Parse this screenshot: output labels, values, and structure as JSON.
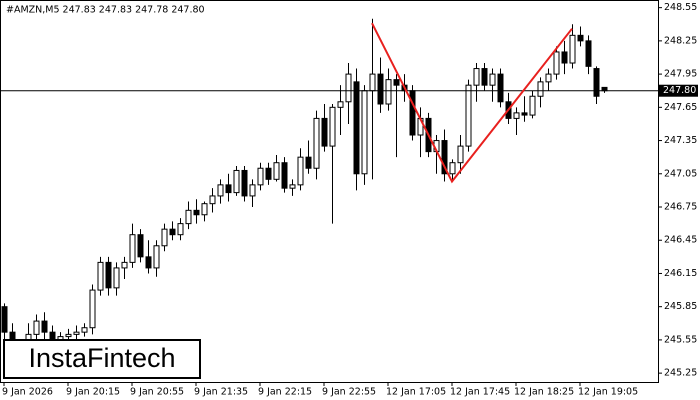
{
  "chart_data": {
    "type": "candlestick",
    "header": "#AMZN,M5  247.83 247.83 247.78 247.80",
    "watermark": "InstaFintech",
    "categories": [
      "9 Jan 2026",
      null,
      null,
      null,
      null,
      null,
      null,
      null,
      "9 Jan 20:15",
      null,
      null,
      null,
      null,
      null,
      null,
      null,
      "9 Jan 20:55",
      null,
      null,
      null,
      null,
      null,
      null,
      null,
      "9 Jan 21:35",
      null,
      null,
      null,
      null,
      null,
      null,
      null,
      "9 Jan 22:15",
      null,
      null,
      null,
      null,
      null,
      null,
      null,
      "9 Jan 22:55",
      null,
      null,
      null,
      null,
      null,
      null,
      null,
      "12 Jan 17:05",
      null,
      null,
      null,
      null,
      null,
      null,
      null,
      "12 Jan 17:45",
      null,
      null,
      null,
      null,
      null,
      null,
      null,
      "12 Jan 18:25",
      null,
      null,
      null,
      null,
      null,
      null,
      null,
      "12 Jan 19:05",
      null,
      null,
      null
    ],
    "open": [
      245.85,
      245.62,
      245.48,
      245.5,
      245.6,
      245.72,
      245.62,
      245.5,
      245.58,
      245.6,
      245.62,
      245.66,
      246.0,
      246.25,
      246.02,
      246.2,
      246.25,
      246.5,
      246.3,
      246.2,
      246.4,
      246.55,
      246.5,
      246.6,
      246.72,
      246.68,
      246.78,
      246.85,
      246.95,
      246.88,
      247.08,
      246.85,
      246.95,
      247.1,
      247.0,
      247.15,
      246.92,
      246.95,
      247.2,
      247.1,
      247.55,
      247.3,
      247.65,
      247.7,
      247.88,
      247.05,
      247.8,
      247.95,
      247.68,
      247.9,
      247.85,
      247.8,
      247.4,
      247.55,
      247.25,
      247.35,
      247.05,
      247.15,
      247.3,
      247.85,
      248.0,
      247.85,
      247.95,
      247.7,
      247.55,
      247.6,
      247.58,
      247.75,
      247.88,
      247.95,
      248.15,
      248.05,
      248.3,
      248.25,
      248.0,
      247.83
    ],
    "high": [
      245.88,
      245.7,
      245.55,
      245.7,
      245.78,
      245.8,
      245.68,
      245.62,
      245.65,
      245.68,
      245.7,
      246.05,
      246.3,
      246.3,
      246.25,
      246.3,
      246.6,
      246.55,
      246.45,
      246.45,
      246.6,
      246.62,
      246.65,
      246.8,
      246.82,
      246.8,
      246.92,
      247.0,
      247.05,
      247.12,
      247.12,
      247.0,
      247.15,
      247.15,
      247.22,
      247.2,
      247.0,
      247.28,
      247.35,
      247.62,
      247.68,
      247.68,
      247.85,
      248.05,
      248.0,
      247.85,
      248.45,
      248.1,
      248.0,
      247.95,
      247.95,
      247.85,
      247.65,
      247.6,
      247.4,
      247.45,
      247.18,
      247.4,
      247.9,
      248.05,
      248.05,
      248.0,
      248.0,
      247.78,
      247.65,
      247.75,
      247.8,
      247.92,
      248.0,
      248.2,
      248.25,
      248.4,
      248.38,
      248.3,
      248.02,
      247.83
    ],
    "low": [
      245.55,
      245.4,
      245.38,
      245.45,
      245.55,
      245.55,
      245.4,
      245.45,
      245.5,
      245.55,
      245.58,
      245.6,
      245.95,
      245.95,
      245.95,
      246.1,
      246.2,
      246.25,
      246.15,
      246.12,
      246.35,
      246.45,
      246.45,
      246.55,
      246.6,
      246.62,
      246.7,
      246.78,
      246.8,
      246.85,
      246.8,
      246.75,
      246.9,
      246.95,
      246.98,
      246.88,
      246.85,
      246.9,
      247.05,
      247.0,
      247.25,
      246.6,
      247.4,
      247.5,
      246.9,
      246.95,
      247.0,
      247.6,
      247.62,
      247.2,
      247.7,
      247.35,
      247.2,
      247.2,
      247.05,
      246.98,
      246.98,
      247.05,
      247.25,
      247.7,
      247.8,
      247.7,
      247.65,
      247.5,
      247.4,
      247.52,
      247.55,
      247.65,
      247.8,
      247.9,
      247.95,
      248.0,
      248.2,
      247.95,
      247.68,
      247.78
    ],
    "close": [
      245.62,
      245.48,
      245.5,
      245.6,
      245.72,
      245.62,
      245.5,
      245.58,
      245.6,
      245.62,
      245.66,
      246.0,
      246.25,
      246.02,
      246.2,
      246.25,
      246.5,
      246.3,
      246.2,
      246.4,
      246.55,
      246.5,
      246.6,
      246.72,
      246.68,
      246.78,
      246.85,
      246.95,
      246.88,
      247.08,
      246.85,
      246.95,
      247.1,
      247.0,
      247.15,
      246.92,
      246.95,
      247.2,
      247.1,
      247.55,
      247.3,
      247.65,
      247.7,
      247.95,
      247.05,
      247.8,
      247.95,
      247.68,
      247.9,
      247.85,
      247.8,
      247.4,
      247.55,
      247.25,
      247.35,
      247.05,
      247.15,
      247.3,
      247.85,
      248.0,
      247.85,
      247.95,
      247.7,
      247.55,
      247.6,
      247.58,
      247.75,
      247.88,
      247.95,
      248.15,
      248.05,
      248.3,
      248.25,
      248.02,
      247.75,
      247.8
    ],
    "up_color": "#ffffff",
    "down_color": "#000000",
    "outline_color": "#000000",
    "current_price": {
      "value": 247.8,
      "label": "247.80"
    },
    "pattern_line": {
      "color": "#e8201e",
      "x_index": [
        46,
        56,
        71
      ],
      "values": [
        248.41,
        246.98,
        248.36
      ]
    },
    "ylim": [
      245.17,
      248.61
    ],
    "yticks": [
      248.55,
      248.25,
      247.95,
      247.65,
      247.35,
      247.05,
      246.75,
      246.45,
      246.15,
      245.85,
      245.55,
      245.25
    ],
    "grid": false
  }
}
